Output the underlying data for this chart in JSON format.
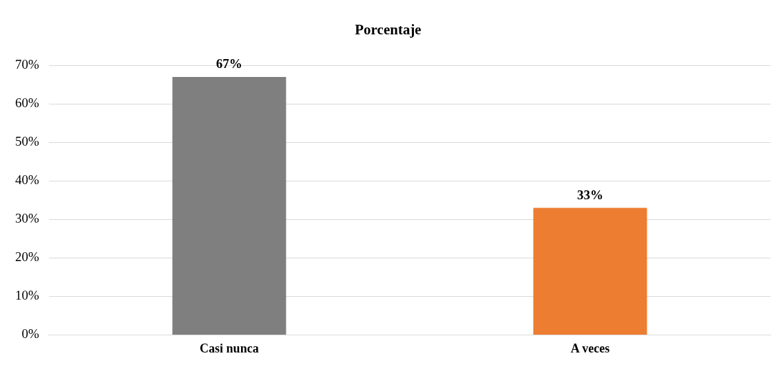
{
  "chart_data": {
    "type": "bar",
    "title": "Porcentaje",
    "categories": [
      "Casi nunca",
      "A veces"
    ],
    "values": [
      67,
      33
    ],
    "colors": [
      "#7f7f7f",
      "#ed7d31"
    ],
    "value_labels": [
      "67%",
      "33%"
    ],
    "ylim": [
      0,
      70
    ],
    "yticks": [
      {
        "value": 0,
        "label": "0%"
      },
      {
        "value": 10,
        "label": "10%"
      },
      {
        "value": 20,
        "label": "20%"
      },
      {
        "value": 30,
        "label": "30%"
      },
      {
        "value": 40,
        "label": "40%"
      },
      {
        "value": 50,
        "label": "50%"
      },
      {
        "value": 60,
        "label": "60%"
      },
      {
        "value": 70,
        "label": "70%"
      }
    ],
    "grid": "y",
    "legend": false
  }
}
